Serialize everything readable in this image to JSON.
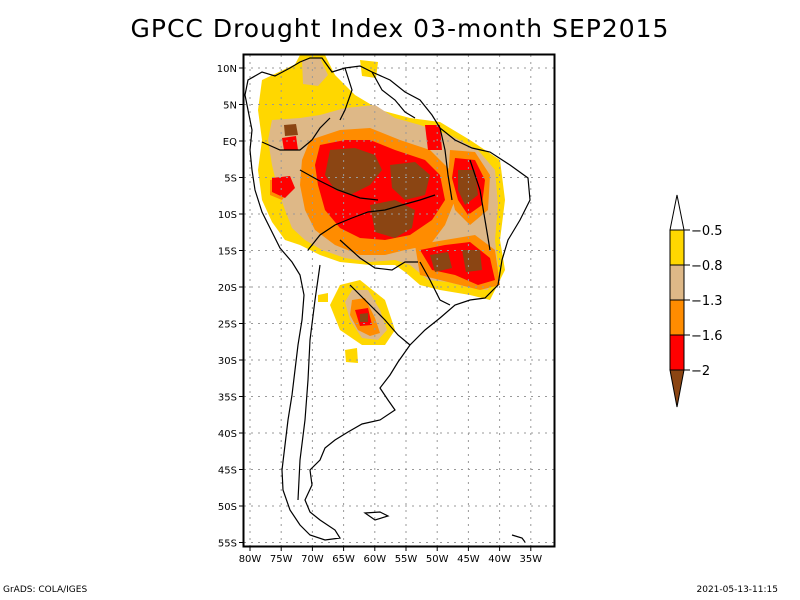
{
  "title": "GPCC Drought Index 03-month SEP2015",
  "footer": {
    "left": "GrADS: COLA/IGES",
    "right": "2021-05-13-11:15"
  },
  "map": {
    "region": "South America",
    "lon_range": [
      -81,
      -31
    ],
    "lat_range": [
      -56,
      12
    ],
    "x_ticks": [
      {
        "lon": -80,
        "label": "80W"
      },
      {
        "lon": -75,
        "label": "75W"
      },
      {
        "lon": -70,
        "label": "70W"
      },
      {
        "lon": -65,
        "label": "65W"
      },
      {
        "lon": -60,
        "label": "60W"
      },
      {
        "lon": -55,
        "label": "55W"
      },
      {
        "lon": -50,
        "label": "50W"
      },
      {
        "lon": -45,
        "label": "45W"
      },
      {
        "lon": -40,
        "label": "40W"
      },
      {
        "lon": -35,
        "label": "35W"
      }
    ],
    "y_ticks": [
      {
        "lat": 10,
        "label": "10N"
      },
      {
        "lat": 5,
        "label": "5N"
      },
      {
        "lat": 0,
        "label": "EQ"
      },
      {
        "lat": -5,
        "label": "5S"
      },
      {
        "lat": -10,
        "label": "10S"
      },
      {
        "lat": -15,
        "label": "15S"
      },
      {
        "lat": -20,
        "label": "20S"
      },
      {
        "lat": -25,
        "label": "25S"
      },
      {
        "lat": -30,
        "label": "30S"
      },
      {
        "lat": -35,
        "label": "35S"
      },
      {
        "lat": -40,
        "label": "40S"
      },
      {
        "lat": -45,
        "label": "45S"
      },
      {
        "lat": -50,
        "label": "50S"
      },
      {
        "lat": -55,
        "label": "55S"
      }
    ],
    "grid": true
  },
  "colorbar": {
    "levels": [
      {
        "label": "-0.5",
        "color": "#FFD700"
      },
      {
        "label": "-0.8",
        "color": "#DEB887"
      },
      {
        "label": "-1.3",
        "color": "#FF8C00"
      },
      {
        "label": "-1.6",
        "color": "#FF0000"
      },
      {
        "label": "-2",
        "color": "#8B4513"
      }
    ],
    "top_extension_color": "#FFFFFF",
    "bottom_extension_color": "#8B4513"
  },
  "colors": {
    "yellow": "#FFD700",
    "tan": "#DEB887",
    "orange": "#FF8C00",
    "red": "#FF0000",
    "brown": "#8B4513"
  }
}
